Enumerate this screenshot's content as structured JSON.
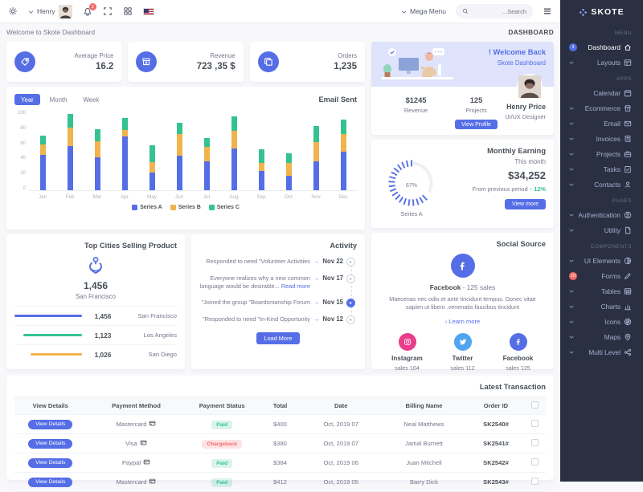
{
  "navbar": {
    "user_name": "Henry",
    "notification_count": "3",
    "mega_menu_label": "Mega Menu",
    "search_placeholder": "...Search",
    "icons_left": [
      "gear-icon",
      "caret-down-icon",
      "user-avatar",
      "bell-icon",
      "fullscreen-icon",
      "apps-grid-icon",
      "us-flag-icon"
    ],
    "icons_right": [
      "caret-down-icon",
      "search-icon",
      "hamburger-icon"
    ]
  },
  "breadcrumb": {
    "welcome": "Welcome to Skote Dashboard",
    "page": "DASHBOARD"
  },
  "stats": [
    {
      "label": "Average Price",
      "value": "16.2",
      "icon": "purchase-tag-icon"
    },
    {
      "label": "Revenue",
      "value": "723 ,35 $",
      "icon": "archive-icon"
    },
    {
      "label": "Orders",
      "value": "1,235",
      "icon": "copy-icon"
    }
  ],
  "welcome_card": {
    "title": "! Welcome Back",
    "subtitle": "Skote Dashboard",
    "revenue_value": "$1245",
    "revenue_label": "Revenue",
    "projects_value": "125",
    "projects_label": "Projects",
    "name": "Henry Price",
    "role": "UI/UX Designer",
    "button": "View Profile"
  },
  "email_sent": {
    "title": "Email Sent",
    "tabs": [
      "Year",
      "Month",
      "Week"
    ],
    "active_tab": "Year"
  },
  "chart_data": [
    {
      "type": "bar",
      "stacked": true,
      "title": "Email Sent",
      "categories": [
        "Jan",
        "Feb",
        "Mar",
        "Apr",
        "May",
        "Jun",
        "Jul",
        "Aug",
        "Sep",
        "Oct",
        "Nov",
        "Dec"
      ],
      "series": [
        {
          "name": "Series A",
          "color": "#556ee6",
          "values": [
            44,
            55,
            41,
            67,
            22,
            43,
            36,
            52,
            24,
            18,
            36,
            48
          ]
        },
        {
          "name": "Series B",
          "color": "#f1b44c",
          "values": [
            13,
            23,
            20,
            8,
            13,
            27,
            18,
            22,
            10,
            16,
            24,
            22
          ]
        },
        {
          "name": "Series C",
          "color": "#34c38f",
          "values": [
            11,
            17,
            15,
            15,
            21,
            14,
            11,
            18,
            17,
            12,
            20,
            18
          ]
        }
      ],
      "ylim": [
        0,
        100
      ],
      "yticks": [
        0,
        20,
        40,
        60,
        80,
        100
      ],
      "legend_position": "bottom",
      "grid": false
    },
    {
      "type": "radial",
      "title": "Monthly Earning",
      "series": [
        {
          "name": "Series A",
          "value": 67
        }
      ],
      "center_label": "67%",
      "color": "#556ee6"
    }
  ],
  "monthly_earning": {
    "title": "Monthly Earning",
    "period": "This month",
    "amount": "$34,252",
    "comparison": "From previous period",
    "delta": "↑ 12%",
    "button": "View more",
    "radial_percent": "67%",
    "radial_label": "Series A"
  },
  "top_cities": {
    "title": "Top Cities Selling Product",
    "highlight_value": "1,456",
    "highlight_city": "San Francisco",
    "rows": [
      {
        "city": "San Francisco",
        "value": "1,456",
        "color": "#556ee6",
        "pct": 100
      },
      {
        "city": "Los Angeles",
        "value": "1,123",
        "color": "#34c38f",
        "pct": 87
      },
      {
        "city": "San Diego",
        "value": "1,026",
        "color": "#f1b44c",
        "pct": 76
      }
    ]
  },
  "activity": {
    "title": "Activity",
    "items": [
      {
        "text": "Responded to need \"Volunteer Activities",
        "link": "",
        "date": "Nov 22",
        "active": false
      },
      {
        "text": "Everyone realizes why a new common language would be desirable...",
        "link": "Read more",
        "date": "Nov 17",
        "active": false
      },
      {
        "text": "\"Joined the group \"Boardsmanship Forum",
        "link": "",
        "date": "Nov 15",
        "active": true
      },
      {
        "text": "\"Responded to need \"In-Kind Opportunity",
        "link": "",
        "date": "Nov 12",
        "active": false
      }
    ],
    "button": "Load More"
  },
  "social": {
    "title": "Social Source",
    "headline_bold": "Facebook",
    "headline_rest": " - 125 sales",
    "description": "Maecenas nec odio et ante tincidunt tempus. Donec vitae sapien ut libero .venenatis faucibus tincidunt",
    "link": "› Learn more",
    "channels": [
      {
        "name": "Instagram",
        "sales": "sales 104",
        "color": "#e83e8c",
        "icon": "instagram-icon"
      },
      {
        "name": "Twitter",
        "sales": "sales 112",
        "color": "#50a5f1",
        "icon": "twitter-icon"
      },
      {
        "name": "Facebook",
        "sales": "sales 125",
        "color": "#556ee6",
        "icon": "facebook-icon"
      }
    ]
  },
  "transactions": {
    "title": "Latest Transaction",
    "headers": [
      "View Details",
      "Payment Method",
      "Payment Status",
      "Total",
      "Date",
      "Billing Name",
      "Order ID"
    ],
    "rows": [
      {
        "button": "View Details",
        "method": "Mastercard",
        "method_icon": "mastercard-icon",
        "status": "Paid",
        "total": "$400",
        "date": "Oct, 2019 07",
        "name": "Neal Matthews",
        "order": "SK2540#"
      },
      {
        "button": "View Details",
        "method": "Visa",
        "method_icon": "visa-icon",
        "status": "Chargeback",
        "total": "$380",
        "date": "Oct, 2019 07",
        "name": "Jamal Burnett",
        "order": "SK2541#"
      },
      {
        "button": "View Details",
        "method": "Paypal",
        "method_icon": "paypal-icon",
        "status": "Paid",
        "total": "$384",
        "date": "Oct, 2019 06",
        "name": "Juan Mitchell",
        "order": "SK2542#"
      },
      {
        "button": "View Details",
        "method": "Mastercard",
        "method_icon": "mastercard-icon",
        "status": "Paid",
        "total": "$412",
        "date": "Oct, 2019 05",
        "name": "Barry Dick",
        "order": "SK2543#"
      }
    ]
  },
  "sidebar": {
    "brand": "SKOTE",
    "sections": [
      {
        "label": "MENU",
        "items": [
          {
            "label": "Dashboard",
            "icon": "home",
            "badge": "3",
            "badge_color": "#556ee6",
            "chevron": false,
            "active": true
          },
          {
            "label": "Layouts",
            "icon": "layout",
            "chevron": true
          }
        ]
      },
      {
        "label": "APPS",
        "items": [
          {
            "label": "Calendar",
            "icon": "calendar",
            "chevron": false
          },
          {
            "label": "Ecommerce",
            "icon": "store",
            "chevron": true
          },
          {
            "label": "Email",
            "icon": "envelope",
            "chevron": true
          },
          {
            "label": "Invoices",
            "icon": "receipt",
            "chevron": true
          },
          {
            "label": "Projects",
            "icon": "briefcase",
            "chevron": true
          },
          {
            "label": "Tasks",
            "icon": "task",
            "chevron": true
          },
          {
            "label": "Contacts",
            "icon": "contacts",
            "chevron": true
          }
        ]
      },
      {
        "label": "PAGES",
        "items": [
          {
            "label": "Authentication",
            "icon": "user-circle",
            "chevron": true
          },
          {
            "label": "Utility",
            "icon": "file",
            "chevron": true
          }
        ]
      },
      {
        "label": "COMPONENTS",
        "items": [
          {
            "label": "UI Elements",
            "icon": "tone",
            "chevron": true
          },
          {
            "label": "Forms",
            "icon": "pencil",
            "badge": "10",
            "badge_color": "#f46a6a",
            "chevron": false
          },
          {
            "label": "Tables",
            "icon": "table",
            "chevron": true
          },
          {
            "label": "Charts",
            "icon": "chart",
            "chevron": true
          },
          {
            "label": "Icons",
            "icon": "aperture",
            "chevron": true
          },
          {
            "label": "Maps",
            "icon": "map",
            "chevron": true
          },
          {
            "label": "Multi Level",
            "icon": "share",
            "chevron": true
          }
        ]
      }
    ]
  },
  "colors": {
    "primary": "#556ee6",
    "success": "#34c38f",
    "warning": "#f1b44c",
    "danger": "#f46a6a",
    "info": "#50a5f1",
    "pink": "#e83e8c",
    "sidebar_bg": "#2a3042",
    "body_bg": "#f8f8fb"
  }
}
